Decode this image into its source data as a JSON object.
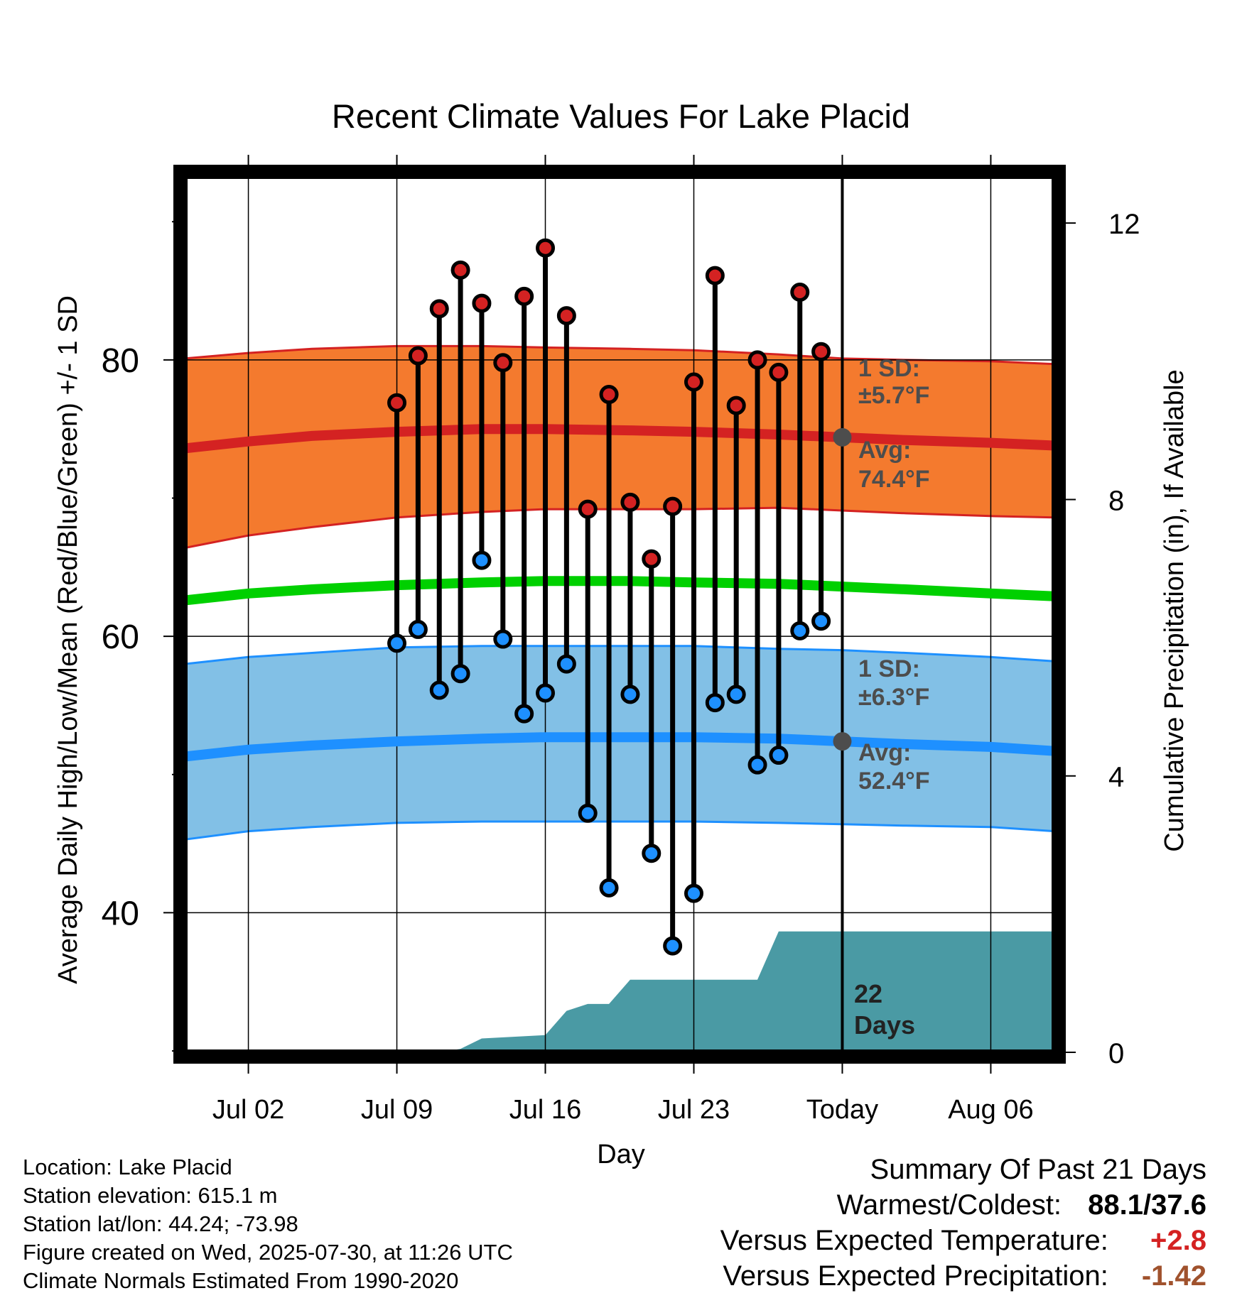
{
  "chart_data": {
    "type": "line",
    "title": "Recent Climate Values For Lake Placid",
    "xlabel": "Day",
    "ylabel": "Average Daily High/Low/Mean (Red/Blue/Green) +/- 1 SD",
    "y2label": "Cumulative Precipitation (in), If Available",
    "ylim": [
      29.9,
      93.3
    ],
    "y_ticks": [
      "40",
      "60",
      "80"
    ],
    "y_minor_ticks": [
      30,
      50,
      70,
      90
    ],
    "y2_ticks": [
      "0",
      "4",
      "8",
      "12"
    ],
    "y2_per_degree": 0.2,
    "x_ticks": [
      "Jul 02",
      "Jul 09",
      "Jul 16",
      "Jul 23",
      "Today",
      "Aug 06"
    ],
    "x_range": [
      "2025-06-29",
      "2025-08-09"
    ],
    "today_date": "2025-07-30",
    "today_label": "Today",
    "grid": true,
    "colors": {
      "high_band": "#f47a2e",
      "high_line": "#d42222",
      "low_band": "#82c0e6",
      "low_line": "#1e90ff",
      "mean_line": "#00d000",
      "precip": "#4a9aa4",
      "high_marker": "#d42222",
      "low_marker": "#1e90ff",
      "annotation": "#4d4d4d"
    },
    "normals": {
      "x": [
        "2025-06-29",
        "2025-07-02",
        "2025-07-05",
        "2025-07-09",
        "2025-07-13",
        "2025-07-16",
        "2025-07-20",
        "2025-07-23",
        "2025-07-27",
        "2025-07-30",
        "2025-08-02",
        "2025-08-06",
        "2025-08-09"
      ],
      "high_avg": [
        73.6,
        74.1,
        74.5,
        74.8,
        75.0,
        75.0,
        74.9,
        74.8,
        74.6,
        74.4,
        74.2,
        74.0,
        73.8
      ],
      "high_sd_upper": [
        80.1,
        80.5,
        80.8,
        81.0,
        81.0,
        80.9,
        80.8,
        80.7,
        80.4,
        80.1,
        80.0,
        79.9,
        79.7
      ],
      "high_sd_lower": [
        66.4,
        67.3,
        67.9,
        68.6,
        69.0,
        69.2,
        69.2,
        69.2,
        69.3,
        69.1,
        68.9,
        68.7,
        68.6
      ],
      "mean": [
        62.6,
        63.1,
        63.4,
        63.7,
        63.9,
        64.0,
        64.0,
        63.9,
        63.8,
        63.6,
        63.4,
        63.1,
        62.9
      ],
      "low_avg": [
        51.3,
        51.8,
        52.1,
        52.4,
        52.6,
        52.7,
        52.7,
        52.7,
        52.6,
        52.4,
        52.2,
        52.0,
        51.7
      ],
      "low_sd_upper": [
        58.0,
        58.5,
        58.8,
        59.2,
        59.3,
        59.3,
        59.3,
        59.3,
        59.1,
        59.0,
        58.8,
        58.5,
        58.2
      ],
      "low_sd_lower": [
        45.3,
        45.9,
        46.2,
        46.5,
        46.6,
        46.6,
        46.6,
        46.6,
        46.5,
        46.4,
        46.3,
        46.2,
        45.9
      ]
    },
    "observations": {
      "x": [
        "2025-07-09",
        "2025-07-10",
        "2025-07-11",
        "2025-07-12",
        "2025-07-13",
        "2025-07-14",
        "2025-07-15",
        "2025-07-16",
        "2025-07-17",
        "2025-07-18",
        "2025-07-19",
        "2025-07-20",
        "2025-07-21",
        "2025-07-22",
        "2025-07-23",
        "2025-07-24",
        "2025-07-25",
        "2025-07-26",
        "2025-07-27",
        "2025-07-28",
        "2025-07-29"
      ],
      "high": [
        76.9,
        80.3,
        83.7,
        86.5,
        84.1,
        79.8,
        84.6,
        88.1,
        83.2,
        69.2,
        77.5,
        69.7,
        65.6,
        69.4,
        78.4,
        86.1,
        76.7,
        80.0,
        79.1,
        84.9,
        80.6
      ],
      "low": [
        59.5,
        60.5,
        56.1,
        57.3,
        65.5,
        59.8,
        54.4,
        55.9,
        58.0,
        47.2,
        41.8,
        55.8,
        44.3,
        37.6,
        41.4,
        55.2,
        55.8,
        50.7,
        51.4,
        60.4,
        61.1
      ]
    },
    "precipitation": {
      "x": [
        "2025-07-11",
        "2025-07-12",
        "2025-07-13",
        "2025-07-16",
        "2025-07-17",
        "2025-07-18",
        "2025-07-19",
        "2025-07-20",
        "2025-07-26",
        "2025-07-27",
        "2025-08-09"
      ],
      "cumulative": [
        0.0,
        0.05,
        0.2,
        0.25,
        0.6,
        0.7,
        0.7,
        1.05,
        1.05,
        1.75,
        1.75
      ]
    },
    "annotations": {
      "high_sd_label": "1 SD:",
      "high_sd_value": "±5.7°F",
      "high_avg_label": "Avg:",
      "high_avg_value": "74.4°F",
      "high_avg_today": 74.4,
      "low_sd_label": "1 SD:",
      "low_sd_value": "±6.3°F",
      "low_avg_label": "Avg:",
      "low_avg_value": "52.4°F",
      "low_avg_today": 52.4,
      "days_line1": "22",
      "days_line2": "Days"
    }
  },
  "info": {
    "location": "Location: Lake Placid",
    "elevation": "Station elevation: 615.1 m",
    "latlon": "Station lat/lon: 44.24; -73.98",
    "created": "Figure created on Wed, 2025-07-30, at 11:26 UTC",
    "normals": "Climate Normals Estimated From 1990-2020"
  },
  "summary": {
    "title": "Summary Of Past 21 Days",
    "warmest_coldest_label": "Warmest/Coldest:",
    "warmest_coldest_value": "88.1/37.6",
    "temp_label": "Versus Expected Temperature:",
    "temp_value": "+2.8",
    "temp_color": "#d42222",
    "precip_label": "Versus Expected Precipitation:",
    "precip_value": "-1.42",
    "precip_color": "#a0522d"
  }
}
